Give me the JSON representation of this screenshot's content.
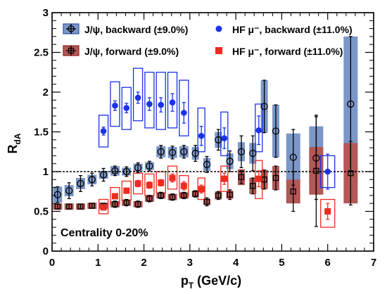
{
  "chart_data": {
    "type": "scatter",
    "xlabel_main": "p",
    "xlabel_sub": "T",
    "xlabel_unit": " (GeV/c)",
    "ylabel_main": "R",
    "ylabel_sub": "dA",
    "xlim": [
      0,
      7
    ],
    "ylim": [
      0,
      3
    ],
    "x_ticks": [
      "0",
      "1",
      "2",
      "3",
      "4",
      "5",
      "6",
      "7"
    ],
    "y_ticks": [
      "0",
      "0.5",
      "1",
      "1.5",
      "2",
      "2.5",
      "3"
    ],
    "reference_line_y": 1,
    "annotation": "Centrality 0-20%",
    "legend": {
      "jpsi_backward": "J/ψ, backward (±9.0%)",
      "jpsi_forward": "J/ψ, forward (±9.0%)",
      "hf_backward": "HF μ⁻, backward (±11.0%)",
      "hf_forward": "HF μ⁻, forward (±11.0%)"
    },
    "colors": {
      "jpsi_backward_box": "#7b97c8",
      "jpsi_forward_box": "#b25856",
      "hf_backward": "#1a33e6",
      "hf_forward": "#ee2b20"
    },
    "series": [
      {
        "name": "J/ψ, backward (±9.0%)",
        "points": [
          {
            "x": 0.12,
            "y": 0.71,
            "err": 0.1,
            "sys": 0.1
          },
          {
            "x": 0.37,
            "y": 0.76,
            "err": 0.1,
            "sys": 0.07
          },
          {
            "x": 0.62,
            "y": 0.85,
            "err": 0.1,
            "sys": 0.07
          },
          {
            "x": 0.87,
            "y": 0.9,
            "err": 0.08,
            "sys": 0.06
          },
          {
            "x": 1.12,
            "y": 0.96,
            "err": 0.08,
            "sys": 0.05
          },
          {
            "x": 1.37,
            "y": 1.01,
            "err": 0.06,
            "sys": 0.06
          },
          {
            "x": 1.62,
            "y": 1.0,
            "err": 0.06,
            "sys": 0.05
          },
          {
            "x": 1.87,
            "y": 1.05,
            "err": 0.06,
            "sys": 0.05
          },
          {
            "x": 2.12,
            "y": 1.07,
            "err": 0.06,
            "sys": 0.05
          },
          {
            "x": 2.37,
            "y": 1.25,
            "err": 0.08,
            "sys": 0.07
          },
          {
            "x": 2.62,
            "y": 1.24,
            "err": 0.08,
            "sys": 0.07
          },
          {
            "x": 2.87,
            "y": 1.25,
            "err": 0.08,
            "sys": 0.07
          },
          {
            "x": 3.12,
            "y": 1.23,
            "err": 0.1,
            "sys": 0.08
          },
          {
            "x": 3.37,
            "y": 1.09,
            "err": 0.1,
            "sys": 0.08
          },
          {
            "x": 3.62,
            "y": 1.4,
            "err": 0.13,
            "sys": 0.1
          },
          {
            "x": 3.87,
            "y": 1.13,
            "err": 0.13,
            "sys": 0.1
          },
          {
            "x": 4.12,
            "y": 1.25,
            "err": 0.2,
            "sys": 0.12
          },
          {
            "x": 4.37,
            "y": 1.23,
            "err": 0.22,
            "sys": 0.13
          },
          {
            "x": 4.62,
            "y": 1.82,
            "err": 0.33,
            "sys": 0.33
          },
          {
            "x": 4.87,
            "y": 1.51,
            "err": 0.33,
            "sys": 0.33
          },
          {
            "x": 5.25,
            "y": 1.18,
            "err": 0.35,
            "sys": 0.3
          },
          {
            "x": 5.75,
            "y": 1.17,
            "err": 0.52,
            "sys": 0.4
          },
          {
            "x": 6.5,
            "y": 1.85,
            "err": 0.85,
            "sys": 0.85
          }
        ]
      },
      {
        "name": "J/ψ, forward (±9.0%)",
        "points": [
          {
            "x": 0.12,
            "y": 0.56,
            "err": 0.03,
            "sys": 0.04
          },
          {
            "x": 0.37,
            "y": 0.56,
            "err": 0.03,
            "sys": 0.04
          },
          {
            "x": 0.62,
            "y": 0.56,
            "err": 0.03,
            "sys": 0.04
          },
          {
            "x": 0.87,
            "y": 0.57,
            "err": 0.03,
            "sys": 0.04
          },
          {
            "x": 1.12,
            "y": 0.57,
            "err": 0.03,
            "sys": 0.04
          },
          {
            "x": 1.37,
            "y": 0.59,
            "err": 0.04,
            "sys": 0.04
          },
          {
            "x": 1.62,
            "y": 0.61,
            "err": 0.04,
            "sys": 0.04
          },
          {
            "x": 1.87,
            "y": 0.59,
            "err": 0.04,
            "sys": 0.04
          },
          {
            "x": 2.12,
            "y": 0.66,
            "err": 0.04,
            "sys": 0.04
          },
          {
            "x": 2.37,
            "y": 0.7,
            "err": 0.04,
            "sys": 0.04
          },
          {
            "x": 2.62,
            "y": 0.68,
            "err": 0.04,
            "sys": 0.04
          },
          {
            "x": 2.87,
            "y": 0.7,
            "err": 0.04,
            "sys": 0.04
          },
          {
            "x": 3.12,
            "y": 0.72,
            "err": 0.04,
            "sys": 0.04
          },
          {
            "x": 3.37,
            "y": 0.62,
            "err": 0.05,
            "sys": 0.04
          },
          {
            "x": 3.62,
            "y": 0.7,
            "err": 0.05,
            "sys": 0.05
          },
          {
            "x": 3.87,
            "y": 0.71,
            "err": 0.06,
            "sys": 0.05
          },
          {
            "x": 4.12,
            "y": 0.93,
            "err": 0.08,
            "sys": 0.1
          },
          {
            "x": 4.37,
            "y": 0.82,
            "err": 0.1,
            "sys": 0.1
          },
          {
            "x": 4.62,
            "y": 0.9,
            "err": 0.12,
            "sys": 0.12
          },
          {
            "x": 4.87,
            "y": 0.92,
            "err": 0.15,
            "sys": 0.15
          },
          {
            "x": 5.25,
            "y": 0.75,
            "err": 0.25,
            "sys": 0.15
          },
          {
            "x": 5.75,
            "y": 1.01,
            "err": 0.7,
            "sys": 0.3
          },
          {
            "x": 6.5,
            "y": 0.98,
            "err": 0.4,
            "sys": 0.38
          }
        ]
      },
      {
        "name": "HF μ⁻, backward (±11.0%)",
        "points": [
          {
            "x": 1.12,
            "y": 1.51,
            "err": 0.05,
            "sys_low": 1.31,
            "sys_high": 1.71
          },
          {
            "x": 1.37,
            "y": 1.83,
            "err": 0.06,
            "sys_low": 1.57,
            "sys_high": 2.13
          },
          {
            "x": 1.62,
            "y": 1.8,
            "err": 0.06,
            "sys_low": 1.53,
            "sys_high": 2.06
          },
          {
            "x": 1.87,
            "y": 1.93,
            "err": 0.07,
            "sys_low": 1.64,
            "sys_high": 2.3
          },
          {
            "x": 2.12,
            "y": 1.85,
            "err": 0.08,
            "sys_low": 1.55,
            "sys_high": 2.25
          },
          {
            "x": 2.37,
            "y": 1.84,
            "err": 0.09,
            "sys_low": 1.53,
            "sys_high": 2.25
          },
          {
            "x": 2.62,
            "y": 1.87,
            "err": 0.11,
            "sys_low": 1.55,
            "sys_high": 2.25
          },
          {
            "x": 2.87,
            "y": 1.74,
            "err": 0.13,
            "sys_low": 1.45,
            "sys_high": 2.15
          },
          {
            "x": 3.25,
            "y": 1.45,
            "err": 0.12,
            "sys_low": 1.25,
            "sys_high": 1.8
          },
          {
            "x": 3.75,
            "y": 1.42,
            "err": 0.13,
            "sys_low": 1.2,
            "sys_high": 1.75
          },
          {
            "x": 4.5,
            "y": 1.52,
            "err": 0.18,
            "sys_low": 1.25,
            "sys_high": 1.85
          },
          {
            "x": 6.0,
            "y": 1.0,
            "err": 0.22,
            "sys_low": 0.8,
            "sys_high": 1.2
          }
        ]
      },
      {
        "name": "HF μ⁻, forward (±11.0%)",
        "points": [
          {
            "x": 1.12,
            "y": 0.55,
            "err": 0.03,
            "sys_low": 0.47,
            "sys_high": 0.65
          },
          {
            "x": 1.37,
            "y": 0.69,
            "err": 0.03,
            "sys_low": 0.59,
            "sys_high": 0.8
          },
          {
            "x": 1.62,
            "y": 0.76,
            "err": 0.03,
            "sys_low": 0.64,
            "sys_high": 0.88
          },
          {
            "x": 1.87,
            "y": 0.85,
            "err": 0.04,
            "sys_low": 0.72,
            "sys_high": 0.98
          },
          {
            "x": 2.12,
            "y": 0.83,
            "err": 0.04,
            "sys_low": 0.7,
            "sys_high": 0.97
          },
          {
            "x": 2.37,
            "y": 0.86,
            "err": 0.04,
            "sys_low": 0.73,
            "sys_high": 1.0
          },
          {
            "x": 2.62,
            "y": 0.92,
            "err": 0.05,
            "sys_low": 0.78,
            "sys_high": 1.07
          },
          {
            "x": 2.87,
            "y": 0.82,
            "err": 0.05,
            "sys_low": 0.69,
            "sys_high": 0.95
          },
          {
            "x": 3.25,
            "y": 0.78,
            "err": 0.05,
            "sys_low": 0.65,
            "sys_high": 0.92
          },
          {
            "x": 3.75,
            "y": 0.91,
            "err": 0.07,
            "sys_low": 0.75,
            "sys_high": 1.07
          },
          {
            "x": 4.5,
            "y": 0.91,
            "err": 0.1,
            "sys_low": 0.66,
            "sys_high": 1.14
          },
          {
            "x": 6.0,
            "y": 0.5,
            "err": 0.1,
            "sys_low": 0.3,
            "sys_high": 0.65
          }
        ]
      }
    ]
  }
}
